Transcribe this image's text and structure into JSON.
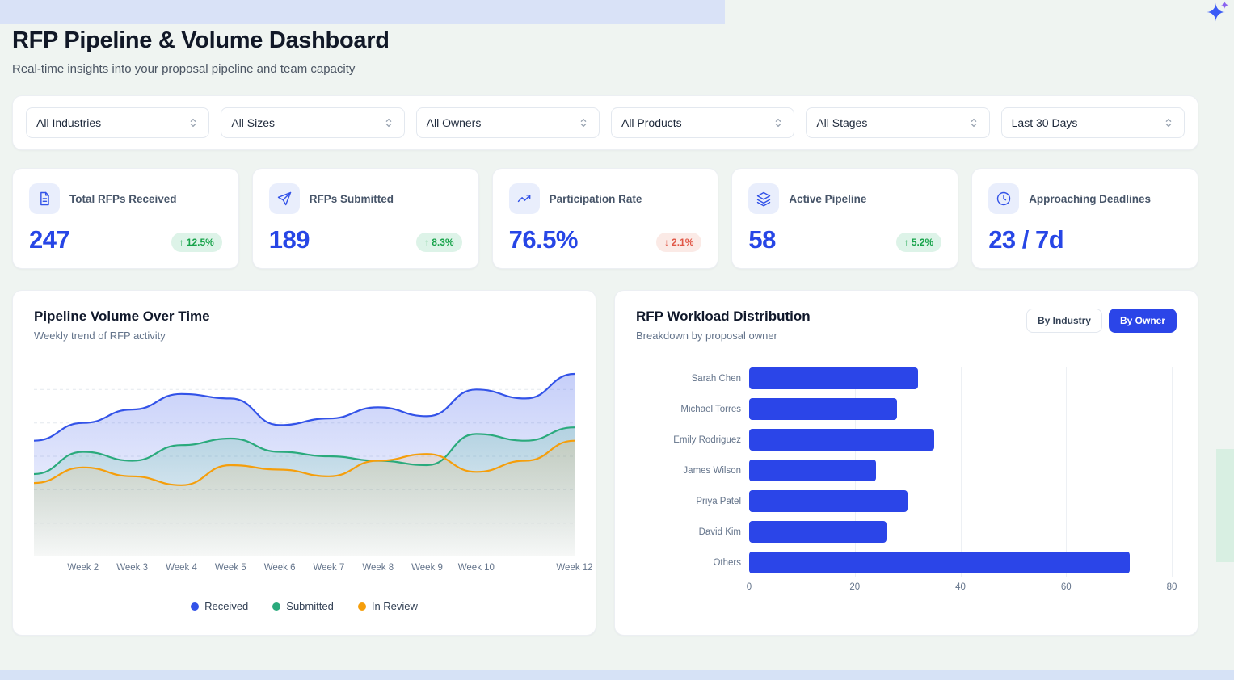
{
  "header": {
    "title": "RFP Pipeline & Volume Dashboard",
    "subtitle": "Real-time insights into your proposal pipeline and team capacity"
  },
  "filters": [
    {
      "label": "All Industries"
    },
    {
      "label": "All Sizes"
    },
    {
      "label": "All Owners"
    },
    {
      "label": "All Products"
    },
    {
      "label": "All Stages"
    },
    {
      "label": "Last 30 Days"
    }
  ],
  "kpis": [
    {
      "label": "Total RFPs Received",
      "value": "247",
      "arrow": "↑",
      "delta": "12.5%",
      "direction": "up",
      "icon": "document-icon"
    },
    {
      "label": "RFPs Submitted",
      "value": "189",
      "arrow": "↑",
      "delta": "8.3%",
      "direction": "up",
      "icon": "send-icon"
    },
    {
      "label": "Participation Rate",
      "value": "76.5%",
      "arrow": "↓",
      "delta": "2.1%",
      "direction": "down",
      "icon": "trend-icon"
    },
    {
      "label": "Active Pipeline",
      "value": "58",
      "arrow": "↑",
      "delta": "5.2%",
      "direction": "up",
      "icon": "layers-icon"
    },
    {
      "label": "Approaching Deadlines",
      "value": "23 / 7d",
      "arrow": "",
      "delta": "",
      "direction": "none",
      "icon": "clock-icon"
    }
  ],
  "workload": {
    "toggle_industry": "By Industry",
    "toggle_owner": "By Owner",
    "active_toggle": "By Owner"
  },
  "colors": {
    "accent_blue": "#2b45e8",
    "value_blue": "#2746e6",
    "badge_up_text": "#17a34a",
    "badge_down_text": "#e05747"
  },
  "chart_data": [
    {
      "type": "area",
      "title": "Pipeline Volume Over Time",
      "subtitle": "Weekly trend of RFP activity",
      "x": [
        "Week 1",
        "Week 2",
        "Week 3",
        "Week 4",
        "Week 5",
        "Week 6",
        "Week 7",
        "Week 8",
        "Week 9",
        "Week 10",
        "Week 11",
        "Week 12"
      ],
      "x_tick_labels": [
        "",
        "Week 2",
        "Week 3",
        "Week 4",
        "Week 5",
        "Week 6",
        "Week 7",
        "Week 8",
        "Week 9",
        "Week 10",
        "",
        "Week 12"
      ],
      "series": [
        {
          "name": "Received",
          "color": "#3353e8",
          "values": [
            52,
            60,
            66,
            73,
            71,
            59,
            62,
            67,
            63,
            75,
            71,
            82
          ]
        },
        {
          "name": "Submitted",
          "color": "#2aaa7c",
          "values": [
            37,
            47,
            43,
            50,
            53,
            47,
            45,
            43,
            41,
            55,
            52,
            58
          ]
        },
        {
          "name": "In Review",
          "color": "#f59e0b",
          "values": [
            33,
            40,
            36,
            32,
            41,
            39,
            36,
            43,
            46,
            38,
            43,
            52
          ]
        }
      ],
      "ylim": [
        0,
        90
      ],
      "grid": "dashed-horizontal",
      "legend_position": "bottom"
    },
    {
      "type": "bar",
      "orientation": "horizontal",
      "title": "RFP Workload Distribution",
      "subtitle": "Breakdown by proposal owner",
      "categories": [
        "Sarah Chen",
        "Michael Torres",
        "Emily Rodriguez",
        "James Wilson",
        "Priya Patel",
        "David Kim",
        "Others"
      ],
      "values": [
        32,
        28,
        35,
        24,
        30,
        26,
        72
      ],
      "xlim": [
        0,
        80
      ],
      "x_ticks": [
        0,
        20,
        40,
        60,
        80
      ],
      "bar_color": "#2b45e8",
      "grid": "vertical"
    }
  ]
}
